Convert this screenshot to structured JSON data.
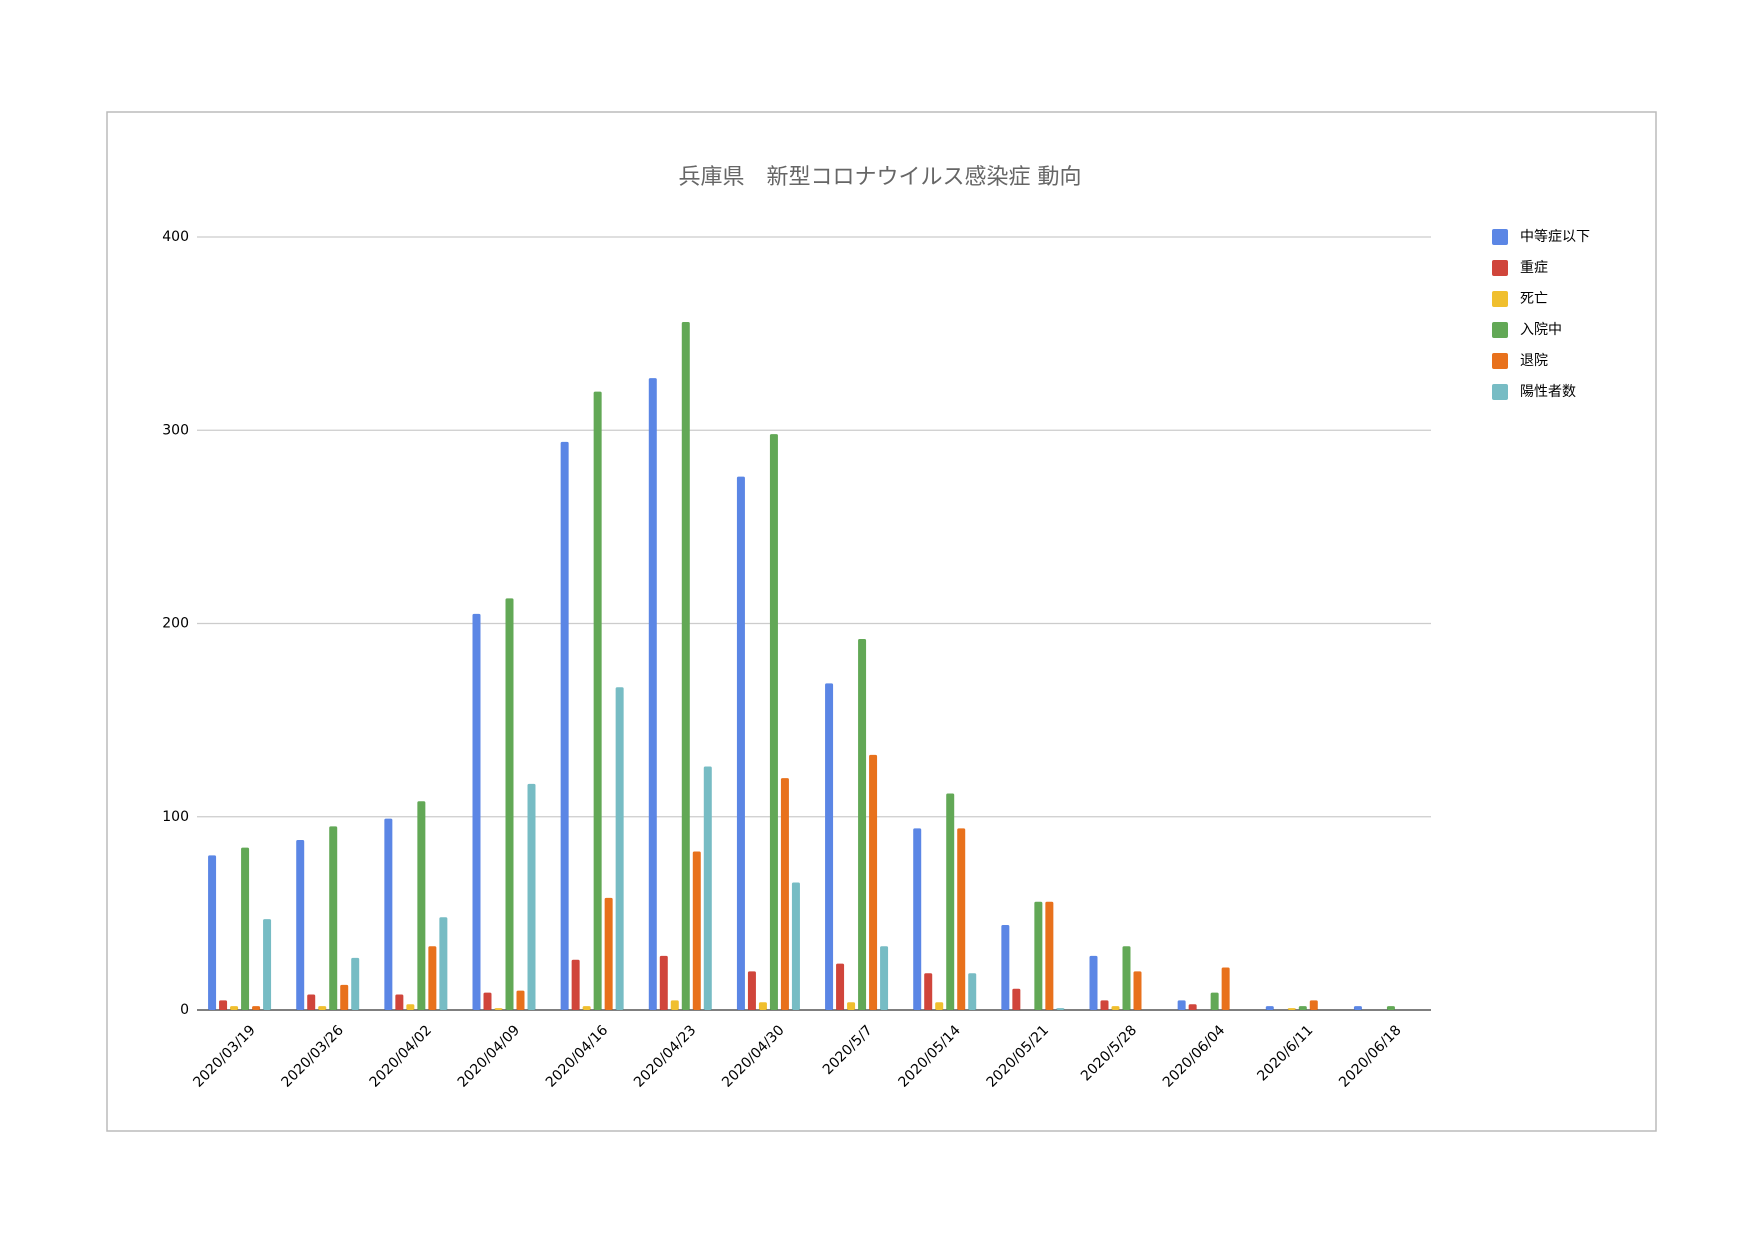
{
  "chart_data": {
    "type": "bar",
    "title": "兵庫県　新型コロナウイルス感染症 動向",
    "categories": [
      "2020/03/19",
      "2020/03/26",
      "2020/04/02",
      "2020/04/09",
      "2020/04/16",
      "2020/04/23",
      "2020/04/30",
      "2020/5/7",
      "2020/05/14",
      "2020/05/21",
      "2020/5/28",
      "2020/06/04",
      "2020/6/11",
      "2020/06/18"
    ],
    "series": [
      {
        "name": "中等症以下",
        "color": "#5b86e5",
        "values": [
          80,
          88,
          99,
          205,
          294,
          327,
          276,
          169,
          94,
          44,
          28,
          5,
          2,
          2
        ]
      },
      {
        "name": "重症",
        "color": "#d0453b",
        "values": [
          5,
          8,
          8,
          9,
          26,
          28,
          20,
          24,
          19,
          11,
          5,
          3,
          0,
          0
        ]
      },
      {
        "name": "死亡",
        "color": "#f0bf2e",
        "values": [
          2,
          2,
          3,
          1,
          2,
          5,
          4,
          4,
          4,
          0,
          2,
          0,
          1,
          0
        ]
      },
      {
        "name": "入院中",
        "color": "#62a856",
        "values": [
          84,
          95,
          108,
          213,
          320,
          356,
          298,
          192,
          112,
          56,
          33,
          9,
          2,
          2
        ]
      },
      {
        "name": "退院",
        "color": "#e8711c",
        "values": [
          2,
          13,
          33,
          10,
          58,
          82,
          120,
          132,
          94,
          56,
          20,
          22,
          5,
          0
        ]
      },
      {
        "name": "陽性者数",
        "color": "#77bcc4",
        "values": [
          47,
          27,
          48,
          117,
          167,
          126,
          66,
          33,
          19,
          1,
          0,
          0,
          0,
          0
        ]
      }
    ],
    "ylim": [
      0,
      400
    ],
    "yticks": [
      0,
      100,
      200,
      300,
      400
    ],
    "grid": true,
    "legend": "right"
  }
}
